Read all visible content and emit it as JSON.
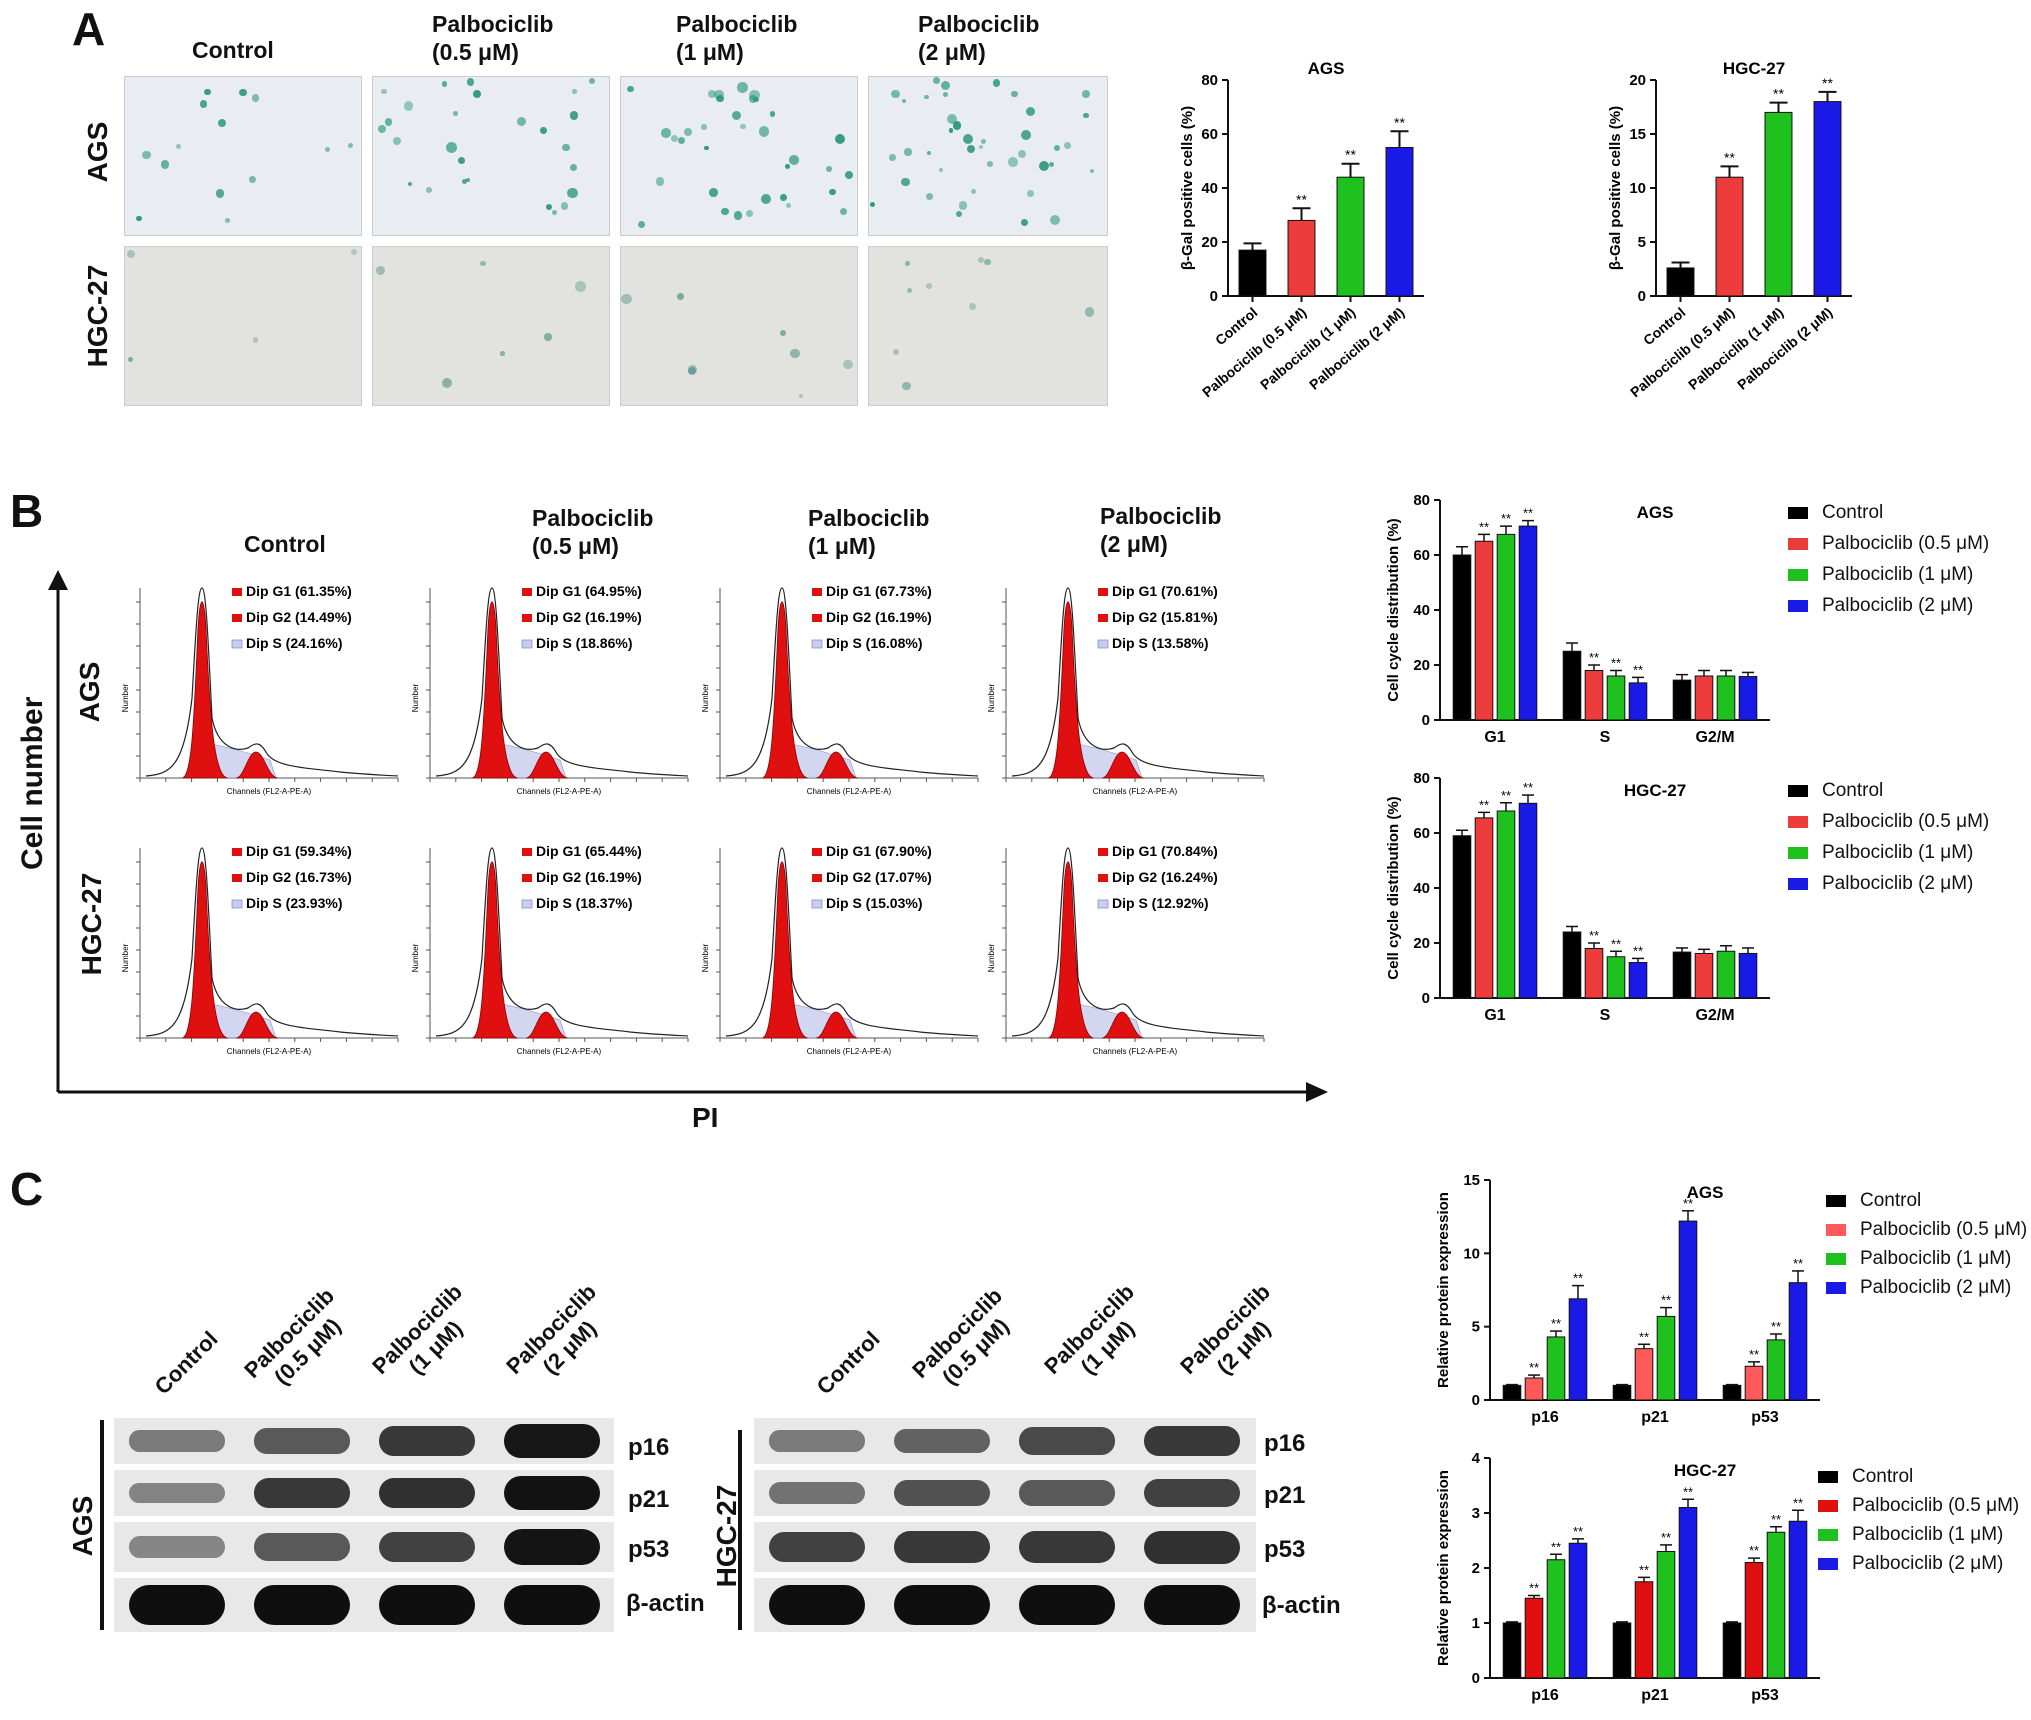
{
  "panels": {
    "A": "A",
    "B": "B",
    "C": "C"
  },
  "colors": {
    "control": "#000000",
    "p05_A": "#ee3b3b",
    "p05_C": "#ff5a5a",
    "p1": "#1fc11f",
    "p2": "#1a1ae6",
    "peak": "#e01010"
  },
  "panelA": {
    "col_headers": [
      {
        "line1": "Control",
        "line2": ""
      },
      {
        "line1": "Palbociclib",
        "line2": "(0.5 μM)"
      },
      {
        "line1": "Palbociclib",
        "line2": "(1 μM)"
      },
      {
        "line1": "Palbociclib",
        "line2": "(2 μM)"
      }
    ],
    "rows": [
      "AGS",
      "HGC-27"
    ]
  },
  "panelB": {
    "col_headers": [
      {
        "line1": "Control",
        "line2": ""
      },
      {
        "line1": "Palbociclib",
        "line2": "(0.5 μM)"
      },
      {
        "line1": "Palbociclib",
        "line2": "(1 μM)"
      },
      {
        "line1": "Palbociclib",
        "line2": "(2 μM)"
      }
    ],
    "rows": [
      "AGS",
      "HGC-27"
    ],
    "y_axis": "Cell number",
    "x_axis": "PI",
    "histo_xlabel": "Channels (FL2-A-PE-A)",
    "histo_ylabel": "Number",
    "histograms": [
      [
        {
          "g1": "Dip G1 (61.35%)",
          "g2": "Dip G2 (14.49%)",
          "s": "Dip S (24.16%)"
        },
        {
          "g1": "Dip G1 (64.95%)",
          "g2": "Dip G2 (16.19%)",
          "s": "Dip S (18.86%)"
        },
        {
          "g1": "Dip G1 (67.73%)",
          "g2": "Dip G2 (16.19%)",
          "s": "Dip S (16.08%)"
        },
        {
          "g1": "Dip G1 (70.61%)",
          "g2": "Dip G2 (15.81%)",
          "s": "Dip S (13.58%)"
        }
      ],
      [
        {
          "g1": "Dip G1 (59.34%)",
          "g2": "Dip G2 (16.73%)",
          "s": "Dip S (23.93%)"
        },
        {
          "g1": "Dip G1 (65.44%)",
          "g2": "Dip G2 (16.19%)",
          "s": "Dip S (18.37%)"
        },
        {
          "g1": "Dip G1 (67.90%)",
          "g2": "Dip G2 (17.07%)",
          "s": "Dip S (15.03%)"
        },
        {
          "g1": "Dip G1 (70.84%)",
          "g2": "Dip G2 (16.24%)",
          "s": "Dip S (12.92%)"
        }
      ]
    ]
  },
  "panelC": {
    "lane_headers": [
      {
        "line1": "Control",
        "line2": ""
      },
      {
        "line1": "Palbociclib",
        "line2": "(0.5 μM)"
      },
      {
        "line1": "Palbociclib",
        "line2": "(1 μM)"
      },
      {
        "line1": "Palbociclib",
        "line2": "(2 μM)"
      }
    ],
    "blots": [
      {
        "cell": "AGS",
        "markers": [
          "p16",
          "p21",
          "p53",
          "β-actin"
        ],
        "intensity": [
          [
            0.35,
            0.55,
            0.75,
            0.95
          ],
          [
            0.3,
            0.75,
            0.8,
            0.98
          ],
          [
            0.28,
            0.55,
            0.7,
            0.97
          ],
          [
            1,
            1,
            1,
            1
          ]
        ]
      },
      {
        "cell": "HGC-27",
        "markers": [
          "p16",
          "p21",
          "p53",
          "β-actin"
        ],
        "intensity": [
          [
            0.35,
            0.5,
            0.65,
            0.75
          ],
          [
            0.4,
            0.6,
            0.55,
            0.7
          ],
          [
            0.7,
            0.75,
            0.75,
            0.8
          ],
          [
            1,
            1,
            1,
            1
          ]
        ]
      }
    ]
  },
  "chart_data": [
    {
      "type": "bar",
      "title": "AGS",
      "ylabel": "β-Gal positive cells (%)",
      "ylim": [
        0,
        80
      ],
      "yticks": [
        0,
        20,
        40,
        60,
        80
      ],
      "categories": [
        "Control",
        "Palbociclib (0.5 μM)",
        "Palbociclib (1 μM)",
        "Palbociclib (2 μM)"
      ],
      "values": [
        17,
        28,
        44,
        55
      ],
      "errors": [
        2.5,
        4.5,
        5,
        6
      ],
      "annotations": [
        "",
        "**",
        "**",
        "**"
      ],
      "colors": [
        "#000000",
        "#ee3b3b",
        "#1fc11f",
        "#1a1ae6"
      ]
    },
    {
      "type": "bar",
      "title": "HGC-27",
      "ylabel": "β-Gal positive cells (%)",
      "ylim": [
        0,
        20
      ],
      "yticks": [
        0,
        5,
        10,
        15,
        20
      ],
      "categories": [
        "Control",
        "Palbociclib (0.5 μM)",
        "Palbociclib (1 μM)",
        "Palbociclib (2 μM)"
      ],
      "values": [
        2.6,
        11,
        17,
        18
      ],
      "errors": [
        0.5,
        1,
        0.9,
        0.9
      ],
      "annotations": [
        "",
        "**",
        "**",
        "**"
      ],
      "colors": [
        "#000000",
        "#ee3b3b",
        "#1fc11f",
        "#1a1ae6"
      ]
    },
    {
      "type": "bar",
      "title": "AGS",
      "ylabel": "Cell cycle distribution (%)",
      "ylim": [
        0,
        80
      ],
      "yticks": [
        0,
        20,
        40,
        60,
        80
      ],
      "categories": [
        "G1",
        "S",
        "G2/M"
      ],
      "series": [
        {
          "name": "Control",
          "values": [
            60,
            25,
            14.5
          ],
          "errors": [
            3,
            3,
            2
          ],
          "annotations": [
            "",
            "",
            ""
          ]
        },
        {
          "name": "Palbociclib (0.5 μM)",
          "values": [
            65,
            18,
            16
          ],
          "errors": [
            2.5,
            2,
            2
          ],
          "annotations": [
            "**",
            "**",
            ""
          ]
        },
        {
          "name": "Palbociclib (1 μM)",
          "values": [
            67.5,
            16,
            16
          ],
          "errors": [
            3,
            2,
            2
          ],
          "annotations": [
            "**",
            "**",
            ""
          ]
        },
        {
          "name": "Palbociclib (2 μM)",
          "values": [
            70.5,
            13.5,
            15.8
          ],
          "errors": [
            2,
            2,
            1.5
          ],
          "annotations": [
            "**",
            "**",
            ""
          ]
        }
      ],
      "legend": "right"
    },
    {
      "type": "bar",
      "title": "HGC-27",
      "ylabel": "Cell cycle distribution (%)",
      "ylim": [
        0,
        80
      ],
      "yticks": [
        0,
        20,
        40,
        60,
        80
      ],
      "categories": [
        "G1",
        "S",
        "G2/M"
      ],
      "series": [
        {
          "name": "Control",
          "values": [
            59,
            24,
            16.7
          ],
          "errors": [
            2,
            2,
            1.5
          ],
          "annotations": [
            "",
            "",
            ""
          ]
        },
        {
          "name": "Palbociclib (0.5 μM)",
          "values": [
            65.5,
            18,
            16.2
          ],
          "errors": [
            2,
            2,
            1.5
          ],
          "annotations": [
            "**",
            "**",
            ""
          ]
        },
        {
          "name": "Palbociclib (1 μM)",
          "values": [
            68,
            15,
            17
          ],
          "errors": [
            3,
            2,
            2
          ],
          "annotations": [
            "**",
            "**",
            ""
          ]
        },
        {
          "name": "Palbociclib (2 μM)",
          "values": [
            70.8,
            12.9,
            16.2
          ],
          "errors": [
            3,
            1.5,
            2
          ],
          "annotations": [
            "**",
            "**",
            ""
          ]
        }
      ],
      "legend": "right"
    },
    {
      "type": "bar",
      "title": "AGS",
      "ylabel": "Relative protein expression",
      "ylim": [
        0,
        15
      ],
      "yticks": [
        0,
        5,
        10,
        15
      ],
      "categories": [
        "p16",
        "p21",
        "p53"
      ],
      "series": [
        {
          "name": "Control",
          "values": [
            1,
            1,
            1
          ],
          "errors": [
            0.05,
            0.05,
            0.05
          ],
          "annotations": [
            "",
            "",
            ""
          ]
        },
        {
          "name": "Palbociclib (0.5 μM)",
          "values": [
            1.5,
            3.5,
            2.3
          ],
          "errors": [
            0.2,
            0.3,
            0.3
          ],
          "annotations": [
            "**",
            "**",
            "**"
          ]
        },
        {
          "name": "Palbociclib (1 μM)",
          "values": [
            4.3,
            5.7,
            4.1
          ],
          "errors": [
            0.4,
            0.6,
            0.4
          ],
          "annotations": [
            "**",
            "**",
            "**"
          ]
        },
        {
          "name": "Palbociclib (2 μM)",
          "values": [
            6.9,
            12.2,
            8.0
          ],
          "errors": [
            0.9,
            0.7,
            0.8
          ],
          "annotations": [
            "**",
            "**",
            "**"
          ]
        }
      ],
      "legend": "right"
    },
    {
      "type": "bar",
      "title": "HGC-27",
      "ylabel": "Relative protein expression",
      "ylim": [
        0,
        4
      ],
      "yticks": [
        0,
        1,
        2,
        3,
        4
      ],
      "categories": [
        "p16",
        "p21",
        "p53"
      ],
      "series": [
        {
          "name": "Control",
          "values": [
            1,
            1,
            1
          ],
          "errors": [
            0.02,
            0.02,
            0.02
          ],
          "annotations": [
            "",
            "",
            ""
          ]
        },
        {
          "name": "Palbociclib (0.5 μM)",
          "values": [
            1.45,
            1.75,
            2.1
          ],
          "errors": [
            0.05,
            0.08,
            0.08
          ],
          "annotations": [
            "**",
            "**",
            "**"
          ]
        },
        {
          "name": "Palbociclib (1 μM)",
          "values": [
            2.15,
            2.3,
            2.65
          ],
          "errors": [
            0.1,
            0.12,
            0.1
          ],
          "annotations": [
            "**",
            "**",
            "**"
          ]
        },
        {
          "name": "Palbociclib (2 μM)",
          "values": [
            2.45,
            3.1,
            2.85
          ],
          "errors": [
            0.08,
            0.15,
            0.2
          ],
          "annotations": [
            "**",
            "**",
            "**"
          ]
        }
      ],
      "legend": "right"
    }
  ]
}
